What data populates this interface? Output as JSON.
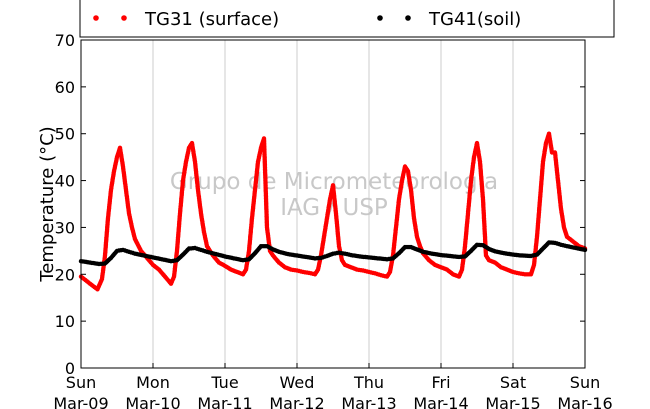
{
  "chart_data": {
    "type": "scatter",
    "title": "",
    "xlabel": "",
    "ylabel": "Temperature (°C)",
    "xlim": [
      "2014-03-09 00:00",
      "2014-03-16 00:00"
    ],
    "ylim": [
      0,
      70
    ],
    "yticks": [
      0,
      10,
      20,
      30,
      40,
      50,
      60,
      70
    ],
    "xticks": [
      {
        "x": "2014-03-09",
        "day": "Sun",
        "date": "Mar-09"
      },
      {
        "x": "2014-03-10",
        "day": "Mon",
        "date": "Mar-10"
      },
      {
        "x": "2014-03-11",
        "day": "Tue",
        "date": "Mar-11"
      },
      {
        "x": "2014-03-12",
        "day": "Wed",
        "date": "Mar-12"
      },
      {
        "x": "2014-03-13",
        "day": "Thu",
        "date": "Mar-13"
      },
      {
        "x": "2014-03-14",
        "day": "Fri",
        "date": "Mar-14"
      },
      {
        "x": "2014-03-15",
        "day": "Sat",
        "date": "Mar-15"
      },
      {
        "x": "2014-03-16",
        "day": "Sun",
        "date": "Mar-16"
      }
    ],
    "grid": "vertical",
    "legend_position": "top",
    "watermark": [
      "Grupo de Micrometeorologia",
      "IAG / USP"
    ],
    "series": [
      {
        "name": "TG31 (surface)",
        "color": "#ff0000",
        "marker": "dot",
        "points": [
          [
            "2014-03-09 00:00",
            19.5
          ],
          [
            "2014-03-09 02:00",
            18.5
          ],
          [
            "2014-03-09 04:00",
            17.5
          ],
          [
            "2014-03-09 05:30",
            16.8
          ],
          [
            "2014-03-09 07:00",
            19.0
          ],
          [
            "2014-03-09 08:00",
            24.0
          ],
          [
            "2014-03-09 09:00",
            32.0
          ],
          [
            "2014-03-09 10:00",
            38.0
          ],
          [
            "2014-03-09 11:00",
            42.0
          ],
          [
            "2014-03-09 12:00",
            45.0
          ],
          [
            "2014-03-09 13:00",
            47.0
          ],
          [
            "2014-03-09 14:00",
            43.0
          ],
          [
            "2014-03-09 15:00",
            38.0
          ],
          [
            "2014-03-09 16:00",
            33.0
          ],
          [
            "2014-03-09 17:00",
            30.0
          ],
          [
            "2014-03-09 18:00",
            27.5
          ],
          [
            "2014-03-09 20:00",
            25.0
          ],
          [
            "2014-03-09 22:00",
            23.5
          ],
          [
            "2014-03-10 00:00",
            22.0
          ],
          [
            "2014-03-10 02:00",
            21.0
          ],
          [
            "2014-03-10 04:00",
            19.5
          ],
          [
            "2014-03-10 06:00",
            18.0
          ],
          [
            "2014-03-10 07:00",
            19.5
          ],
          [
            "2014-03-10 08:00",
            25.0
          ],
          [
            "2014-03-10 09:00",
            33.0
          ],
          [
            "2014-03-10 10:00",
            40.0
          ],
          [
            "2014-03-10 11:00",
            44.0
          ],
          [
            "2014-03-10 12:00",
            47.0
          ],
          [
            "2014-03-10 13:00",
            48.0
          ],
          [
            "2014-03-10 14:00",
            44.0
          ],
          [
            "2014-03-10 15:00",
            38.0
          ],
          [
            "2014-03-10 16:00",
            33.0
          ],
          [
            "2014-03-10 17:00",
            29.0
          ],
          [
            "2014-03-10 18:00",
            26.0
          ],
          [
            "2014-03-10 20:00",
            24.0
          ],
          [
            "2014-03-10 22:00",
            22.5
          ],
          [
            "2014-03-11 00:00",
            21.8
          ],
          [
            "2014-03-11 02:00",
            21.0
          ],
          [
            "2014-03-11 04:00",
            20.5
          ],
          [
            "2014-03-11 06:00",
            20.0
          ],
          [
            "2014-03-11 07:00",
            21.0
          ],
          [
            "2014-03-11 08:00",
            25.0
          ],
          [
            "2014-03-11 09:00",
            32.0
          ],
          [
            "2014-03-11 10:00",
            38.0
          ],
          [
            "2014-03-11 11:00",
            44.0
          ],
          [
            "2014-03-11 12:00",
            47.0
          ],
          [
            "2014-03-11 13:00",
            49.0
          ],
          [
            "2014-03-11 14:00",
            30.0
          ],
          [
            "2014-03-11 15:00",
            25.0
          ],
          [
            "2014-03-11 16:00",
            24.0
          ],
          [
            "2014-03-11 18:00",
            22.5
          ],
          [
            "2014-03-11 20:00",
            21.5
          ],
          [
            "2014-03-11 22:00",
            21.0
          ],
          [
            "2014-03-12 00:00",
            20.8
          ],
          [
            "2014-03-12 02:00",
            20.5
          ],
          [
            "2014-03-12 04:00",
            20.3
          ],
          [
            "2014-03-12 06:00",
            20.0
          ],
          [
            "2014-03-12 07:00",
            21.0
          ],
          [
            "2014-03-12 08:00",
            24.0
          ],
          [
            "2014-03-12 09:00",
            28.0
          ],
          [
            "2014-03-12 10:00",
            32.0
          ],
          [
            "2014-03-12 11:00",
            36.0
          ],
          [
            "2014-03-12 12:00",
            39.0
          ],
          [
            "2014-03-12 13:00",
            33.0
          ],
          [
            "2014-03-12 14:00",
            26.0
          ],
          [
            "2014-03-12 15:00",
            23.0
          ],
          [
            "2014-03-12 16:00",
            22.0
          ],
          [
            "2014-03-12 18:00",
            21.5
          ],
          [
            "2014-03-12 20:00",
            21.0
          ],
          [
            "2014-03-12 22:00",
            20.8
          ],
          [
            "2014-03-13 00:00",
            20.5
          ],
          [
            "2014-03-13 02:00",
            20.2
          ],
          [
            "2014-03-13 04:00",
            19.8
          ],
          [
            "2014-03-13 06:00",
            19.5
          ],
          [
            "2014-03-13 07:00",
            20.5
          ],
          [
            "2014-03-13 08:00",
            24.0
          ],
          [
            "2014-03-13 09:00",
            30.0
          ],
          [
            "2014-03-13 10:00",
            36.0
          ],
          [
            "2014-03-13 11:00",
            40.0
          ],
          [
            "2014-03-13 12:00",
            43.0
          ],
          [
            "2014-03-13 13:00",
            42.0
          ],
          [
            "2014-03-13 14:00",
            38.0
          ],
          [
            "2014-03-13 15:00",
            32.0
          ],
          [
            "2014-03-13 16:00",
            28.0
          ],
          [
            "2014-03-13 17:00",
            26.0
          ],
          [
            "2014-03-13 18:00",
            24.5
          ],
          [
            "2014-03-13 20:00",
            23.0
          ],
          [
            "2014-03-13 22:00",
            22.0
          ],
          [
            "2014-03-14 00:00",
            21.5
          ],
          [
            "2014-03-14 02:00",
            21.0
          ],
          [
            "2014-03-14 04:00",
            20.0
          ],
          [
            "2014-03-14 06:00",
            19.5
          ],
          [
            "2014-03-14 07:00",
            21.0
          ],
          [
            "2014-03-14 08:00",
            26.0
          ],
          [
            "2014-03-14 09:00",
            33.0
          ],
          [
            "2014-03-14 10:00",
            40.0
          ],
          [
            "2014-03-14 11:00",
            45.0
          ],
          [
            "2014-03-14 12:00",
            48.0
          ],
          [
            "2014-03-14 13:00",
            44.0
          ],
          [
            "2014-03-14 14:00",
            36.0
          ],
          [
            "2014-03-14 15:00",
            24.0
          ],
          [
            "2014-03-14 16:00",
            23.0
          ],
          [
            "2014-03-14 18:00",
            22.5
          ],
          [
            "2014-03-14 20:00",
            21.5
          ],
          [
            "2014-03-14 22:00",
            21.0
          ],
          [
            "2014-03-15 00:00",
            20.5
          ],
          [
            "2014-03-15 02:00",
            20.2
          ],
          [
            "2014-03-15 04:00",
            20.0
          ],
          [
            "2014-03-15 06:00",
            20.0
          ],
          [
            "2014-03-15 07:00",
            22.0
          ],
          [
            "2014-03-15 08:00",
            28.0
          ],
          [
            "2014-03-15 09:00",
            36.0
          ],
          [
            "2014-03-15 10:00",
            44.0
          ],
          [
            "2014-03-15 11:00",
            48.0
          ],
          [
            "2014-03-15 12:00",
            50.0
          ],
          [
            "2014-03-15 13:00",
            46.0
          ],
          [
            "2014-03-15 14:00",
            46.0
          ],
          [
            "2014-03-15 15:00",
            40.0
          ],
          [
            "2014-03-15 16:00",
            34.0
          ],
          [
            "2014-03-15 17:00",
            30.0
          ],
          [
            "2014-03-15 18:00",
            28.0
          ],
          [
            "2014-03-15 20:00",
            27.0
          ],
          [
            "2014-03-15 22:00",
            26.0
          ],
          [
            "2014-03-16 00:00",
            25.5
          ]
        ]
      },
      {
        "name": "TG41(soil)",
        "color": "#000000",
        "marker": "dot",
        "points": [
          [
            "2014-03-09 00:00",
            22.8
          ],
          [
            "2014-03-09 03:00",
            22.5
          ],
          [
            "2014-03-09 06:00",
            22.2
          ],
          [
            "2014-03-09 08:00",
            22.3
          ],
          [
            "2014-03-09 10:00",
            23.5
          ],
          [
            "2014-03-09 12:00",
            25.0
          ],
          [
            "2014-03-09 14:00",
            25.2
          ],
          [
            "2014-03-09 16:00",
            24.8
          ],
          [
            "2014-03-09 18:00",
            24.4
          ],
          [
            "2014-03-09 21:00",
            24.0
          ],
          [
            "2014-03-10 00:00",
            23.6
          ],
          [
            "2014-03-10 03:00",
            23.2
          ],
          [
            "2014-03-10 06:00",
            22.8
          ],
          [
            "2014-03-10 08:00",
            23.0
          ],
          [
            "2014-03-10 10:00",
            24.2
          ],
          [
            "2014-03-10 12:00",
            25.5
          ],
          [
            "2014-03-10 14:00",
            25.6
          ],
          [
            "2014-03-10 16:00",
            25.2
          ],
          [
            "2014-03-10 18:00",
            24.8
          ],
          [
            "2014-03-10 21:00",
            24.3
          ],
          [
            "2014-03-11 00:00",
            23.8
          ],
          [
            "2014-03-11 03:00",
            23.4
          ],
          [
            "2014-03-11 06:00",
            23.0
          ],
          [
            "2014-03-11 08:00",
            23.2
          ],
          [
            "2014-03-11 10:00",
            24.5
          ],
          [
            "2014-03-11 12:00",
            26.0
          ],
          [
            "2014-03-11 14:00",
            26.0
          ],
          [
            "2014-03-11 16:00",
            25.3
          ],
          [
            "2014-03-11 18:00",
            24.8
          ],
          [
            "2014-03-11 21:00",
            24.3
          ],
          [
            "2014-03-12 00:00",
            24.0
          ],
          [
            "2014-03-12 03:00",
            23.7
          ],
          [
            "2014-03-12 06:00",
            23.4
          ],
          [
            "2014-03-12 08:00",
            23.5
          ],
          [
            "2014-03-12 10:00",
            23.9
          ],
          [
            "2014-03-12 12:00",
            24.4
          ],
          [
            "2014-03-12 14:00",
            24.6
          ],
          [
            "2014-03-12 16:00",
            24.4
          ],
          [
            "2014-03-12 18:00",
            24.1
          ],
          [
            "2014-03-12 21:00",
            23.8
          ],
          [
            "2014-03-13 00:00",
            23.6
          ],
          [
            "2014-03-13 03:00",
            23.4
          ],
          [
            "2014-03-13 06:00",
            23.2
          ],
          [
            "2014-03-13 08:00",
            23.4
          ],
          [
            "2014-03-13 10:00",
            24.5
          ],
          [
            "2014-03-13 12:00",
            25.8
          ],
          [
            "2014-03-13 14:00",
            25.8
          ],
          [
            "2014-03-13 16:00",
            25.3
          ],
          [
            "2014-03-13 18:00",
            24.8
          ],
          [
            "2014-03-13 21:00",
            24.4
          ],
          [
            "2014-03-14 00:00",
            24.1
          ],
          [
            "2014-03-14 03:00",
            23.9
          ],
          [
            "2014-03-14 06:00",
            23.7
          ],
          [
            "2014-03-14 08:00",
            23.8
          ],
          [
            "2014-03-14 10:00",
            25.0
          ],
          [
            "2014-03-14 12:00",
            26.3
          ],
          [
            "2014-03-14 14:00",
            26.2
          ],
          [
            "2014-03-14 16:00",
            25.4
          ],
          [
            "2014-03-14 18:00",
            24.9
          ],
          [
            "2014-03-14 21:00",
            24.5
          ],
          [
            "2014-03-15 00:00",
            24.2
          ],
          [
            "2014-03-15 03:00",
            24.0
          ],
          [
            "2014-03-15 06:00",
            23.9
          ],
          [
            "2014-03-15 08:00",
            24.2
          ],
          [
            "2014-03-15 10:00",
            25.5
          ],
          [
            "2014-03-15 12:00",
            26.8
          ],
          [
            "2014-03-15 14:00",
            26.7
          ],
          [
            "2014-03-15 16:00",
            26.3
          ],
          [
            "2014-03-15 18:00",
            26.0
          ],
          [
            "2014-03-15 21:00",
            25.6
          ],
          [
            "2014-03-16 00:00",
            25.2
          ]
        ]
      }
    ]
  }
}
